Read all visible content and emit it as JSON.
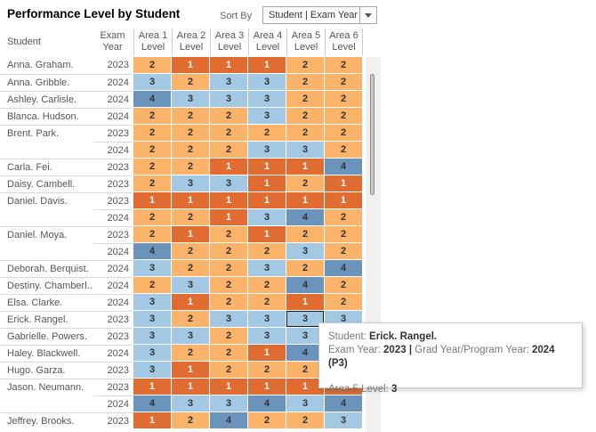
{
  "title": "Performance Level by Student",
  "sort": {
    "label": "Sort By",
    "value": "Student | Exam Year"
  },
  "columns": {
    "student": "Student",
    "exam_year": "Exam Year",
    "areas": [
      "Area 1 Level",
      "Area 2 Level",
      "Area 3 Level",
      "Area 4 Level",
      "Area 5 Level",
      "Area 6 Level"
    ]
  },
  "palette": {
    "level1": "#e06c31",
    "level2": "#fab368",
    "level3": "#a2c8e3",
    "level4": "#6b94bc"
  },
  "rows": [
    {
      "student": "Anna. Graham.",
      "year": "2023",
      "cont": false,
      "levels": [
        2,
        1,
        1,
        1,
        2,
        2
      ]
    },
    {
      "student": "Anna. Gribble.",
      "year": "2024",
      "cont": false,
      "levels": [
        3,
        2,
        3,
        3,
        2,
        2
      ]
    },
    {
      "student": "Ashley. Carlisle.",
      "year": "2024",
      "cont": false,
      "levels": [
        4,
        3,
        3,
        3,
        2,
        2
      ]
    },
    {
      "student": "Blanca. Hudson.",
      "year": "2024",
      "cont": false,
      "levels": [
        2,
        2,
        2,
        3,
        2,
        2
      ]
    },
    {
      "student": "Brent. Park.",
      "year": "2023",
      "cont": false,
      "levels": [
        2,
        2,
        2,
        2,
        2,
        2
      ]
    },
    {
      "student": "",
      "year": "2024",
      "cont": true,
      "levels": [
        2,
        2,
        2,
        3,
        3,
        2
      ]
    },
    {
      "student": "Carla. Fei.",
      "year": "2023",
      "cont": false,
      "levels": [
        2,
        2,
        1,
        1,
        1,
        4
      ]
    },
    {
      "student": "Daisy. Cambell.",
      "year": "2023",
      "cont": false,
      "levels": [
        2,
        3,
        3,
        1,
        2,
        1
      ]
    },
    {
      "student": "Daniel. Davis.",
      "year": "2023",
      "cont": false,
      "levels": [
        1,
        1,
        1,
        1,
        1,
        1
      ]
    },
    {
      "student": "",
      "year": "2024",
      "cont": true,
      "levels": [
        2,
        2,
        1,
        3,
        4,
        2
      ]
    },
    {
      "student": "Daniel. Moya.",
      "year": "2023",
      "cont": false,
      "levels": [
        2,
        1,
        2,
        1,
        2,
        2
      ]
    },
    {
      "student": "",
      "year": "2024",
      "cont": true,
      "levels": [
        4,
        2,
        2,
        2,
        3,
        2
      ]
    },
    {
      "student": "Deborah. Berquist.",
      "year": "2024",
      "cont": false,
      "levels": [
        3,
        2,
        2,
        3,
        2,
        4
      ]
    },
    {
      "student": "Destiny. Chamberl..",
      "year": "2024",
      "cont": false,
      "levels": [
        2,
        3,
        2,
        2,
        4,
        2
      ]
    },
    {
      "student": "Elsa. Clarke.",
      "year": "2024",
      "cont": false,
      "levels": [
        3,
        1,
        2,
        2,
        1,
        2
      ]
    },
    {
      "student": "Erick. Rangel.",
      "year": "2023",
      "cont": false,
      "levels": [
        3,
        2,
        3,
        3,
        3,
        3
      ]
    },
    {
      "student": "Gabrielle. Powers.",
      "year": "2023",
      "cont": false,
      "levels": [
        3,
        3,
        2,
        3,
        3,
        null
      ]
    },
    {
      "student": "Haley. Blackwell.",
      "year": "2024",
      "cont": false,
      "levels": [
        3,
        2,
        2,
        1,
        4,
        null
      ]
    },
    {
      "student": "Hugo. Garza.",
      "year": "2023",
      "cont": false,
      "levels": [
        3,
        1,
        2,
        2,
        2,
        null
      ]
    },
    {
      "student": "Jason. Neumann.",
      "year": "2023",
      "cont": false,
      "levels": [
        1,
        1,
        1,
        1,
        1,
        1
      ]
    },
    {
      "student": "",
      "year": "2024",
      "cont": true,
      "levels": [
        4,
        3,
        3,
        4,
        3,
        4
      ]
    },
    {
      "student": "Jeffrey. Brooks.",
      "year": "2023",
      "cont": false,
      "levels": [
        1,
        2,
        4,
        2,
        2,
        3
      ]
    }
  ],
  "highlight": {
    "row": 15,
    "col": 4
  },
  "tooltip": {
    "student_label": "Student:",
    "student_value": "Erick. Rangel.",
    "exam_year_label": "Exam Year:",
    "exam_year_value": "2023",
    "separator": "|",
    "grad_label": "Grad Year/Program Year:",
    "grad_value": "2024 (P3)",
    "area_label": "Area 5 Level:",
    "area_value": "3"
  }
}
